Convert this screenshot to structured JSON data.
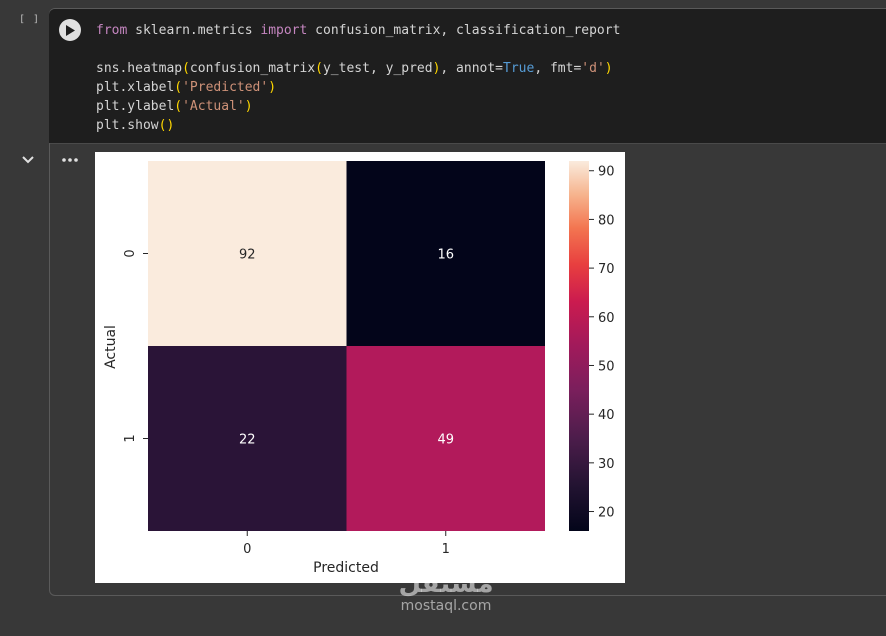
{
  "notebook": {
    "exec_count": "[ ]",
    "code_lines": [
      "from sklearn.metrics import confusion_matrix, classification_report",
      "",
      "sns.heatmap(confusion_matrix(y_test, y_pred), annot=True, fmt='d')",
      "plt.xlabel('Predicted')",
      "plt.ylabel('Actual')",
      "plt.show()"
    ],
    "icons": {
      "run": "play-icon",
      "collapse": "chevron-down-icon",
      "output_menu": "more-horizontal-icon"
    }
  },
  "watermark": {
    "logo_text": "مستقل",
    "text": "mostaql.com"
  },
  "chart_data": {
    "type": "heatmap",
    "x_categories": [
      "0",
      "1"
    ],
    "y_categories": [
      "0",
      "1"
    ],
    "values": [
      [
        92,
        16
      ],
      [
        22,
        49
      ]
    ],
    "xlabel": "Predicted",
    "ylabel": "Actual",
    "colorbar": {
      "min": 16,
      "max": 92,
      "ticks": [
        20,
        30,
        40,
        50,
        60,
        70,
        80,
        90
      ],
      "colormap": "rocket"
    },
    "cell_colors": [
      "#faebdd",
      "#03051a",
      "#2a1437",
      "#b21a5b"
    ],
    "annot_colors": [
      "#262626",
      "#ffffff",
      "#ffffff",
      "#ffffff"
    ]
  }
}
